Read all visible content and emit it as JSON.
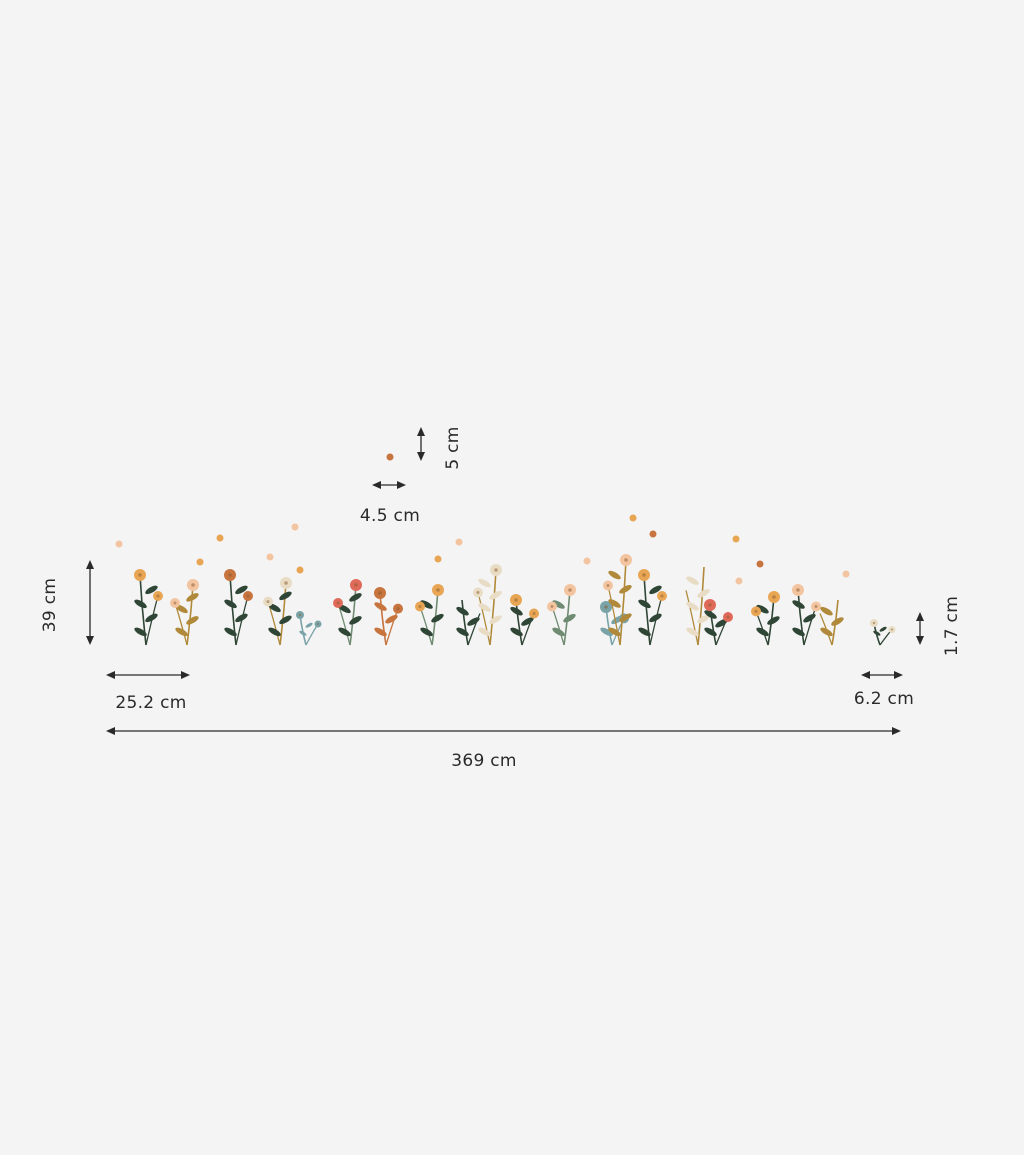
{
  "dimensions": {
    "total_width": "369 cm",
    "height": "39 cm",
    "large_plant_width": "25.2 cm",
    "small_plant_width": "6.2 cm",
    "small_plant_height": "1.7 cm",
    "confetti_width": "4.5 cm",
    "confetti_height": "5 cm"
  },
  "colors": {
    "background": "#f4f4f4",
    "arrow": "#2a2a2a",
    "dark_green": "#2f4535",
    "sage": "#6f8c72",
    "ochre": "#b08a3a",
    "orange": "#e8a654",
    "peach": "#f3c4a0",
    "coral": "#e06a5a",
    "rust": "#c7743f",
    "teal": "#7aa3a8",
    "cream": "#e8dcc4"
  }
}
